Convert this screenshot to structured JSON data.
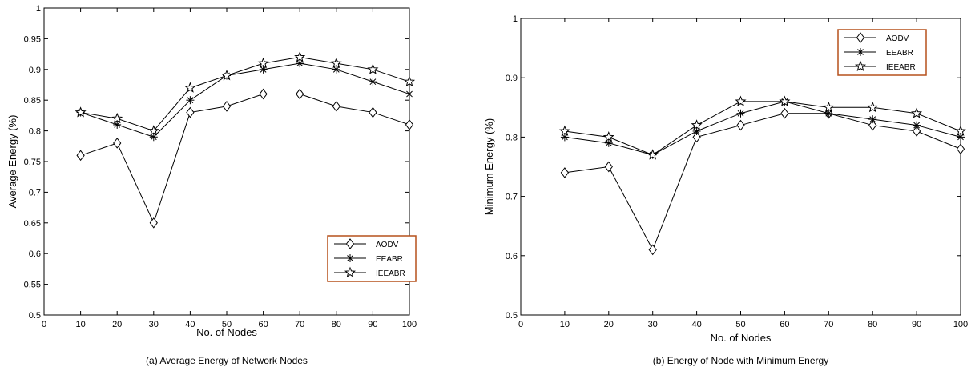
{
  "series_styles": [
    {
      "marker": "diamond",
      "color": "#000000"
    },
    {
      "marker": "asterisk",
      "color": "#000000"
    },
    {
      "marker": "star",
      "color": "#000000"
    }
  ],
  "legend_border_color": "#b5501c",
  "chart_data": [
    {
      "type": "line",
      "caption": "(a) Average Energy of Network Nodes",
      "xlabel": "No. of Nodes",
      "ylabel": "Average Energy (%)",
      "xlim": [
        0,
        100
      ],
      "ylim": [
        0.5,
        1
      ],
      "xticks": [
        0,
        10,
        20,
        30,
        40,
        50,
        60,
        70,
        80,
        90,
        100
      ],
      "xtick_labels": [
        "0",
        "10",
        "20",
        "30",
        "40",
        "50",
        "60",
        "70",
        "80",
        "90",
        "100"
      ],
      "yticks": [
        0.5,
        0.55,
        0.6,
        0.65,
        0.7,
        0.75,
        0.8,
        0.85,
        0.9,
        0.95,
        1
      ],
      "ytick_labels": [
        "0.5",
        "0.55",
        "0.6",
        "0.65",
        "0.7",
        "0.75",
        "0.8",
        "0.85",
        "0.9",
        "0.95",
        "1"
      ],
      "x": [
        10,
        20,
        30,
        40,
        50,
        60,
        70,
        80,
        90,
        100
      ],
      "legend_position": "bottom-right",
      "series": [
        {
          "name": "AODV",
          "values": [
            0.76,
            0.78,
            0.65,
            0.83,
            0.84,
            0.86,
            0.86,
            0.84,
            0.83,
            0.81
          ]
        },
        {
          "name": "EEABR",
          "values": [
            0.83,
            0.81,
            0.79,
            0.85,
            0.89,
            0.9,
            0.91,
            0.9,
            0.88,
            0.86
          ]
        },
        {
          "name": "IEEABR",
          "values": [
            0.83,
            0.82,
            0.8,
            0.87,
            0.89,
            0.91,
            0.92,
            0.91,
            0.9,
            0.88
          ]
        }
      ]
    },
    {
      "type": "line",
      "caption": "(b) Energy of Node with Minimum Energy",
      "xlabel": "No. of Nodes",
      "ylabel": "Minimum Energy (%)",
      "xlim": [
        0,
        100
      ],
      "ylim": [
        0.5,
        1
      ],
      "xticks": [
        0,
        10,
        20,
        30,
        40,
        50,
        60,
        70,
        80,
        90,
        100
      ],
      "xtick_labels": [
        "0",
        "10",
        "20",
        "30",
        "40",
        "50",
        "60",
        "70",
        "80",
        "90",
        "100"
      ],
      "yticks": [
        0.5,
        0.6,
        0.7,
        0.8,
        0.9,
        1
      ],
      "ytick_labels": [
        "0.5",
        "0.6",
        "0.7",
        "0.8",
        "0.9",
        "1"
      ],
      "x": [
        10,
        20,
        30,
        40,
        50,
        60,
        70,
        80,
        90,
        100
      ],
      "legend_position": "top-right",
      "series": [
        {
          "name": "AODV",
          "values": [
            0.74,
            0.75,
            0.61,
            0.8,
            0.82,
            0.84,
            0.84,
            0.82,
            0.81,
            0.78
          ]
        },
        {
          "name": "EEABR",
          "values": [
            0.8,
            0.79,
            0.77,
            0.81,
            0.84,
            0.86,
            0.84,
            0.83,
            0.82,
            0.8
          ]
        },
        {
          "name": "IEEABR",
          "values": [
            0.81,
            0.8,
            0.77,
            0.82,
            0.86,
            0.86,
            0.85,
            0.85,
            0.84,
            0.81
          ]
        }
      ]
    }
  ]
}
